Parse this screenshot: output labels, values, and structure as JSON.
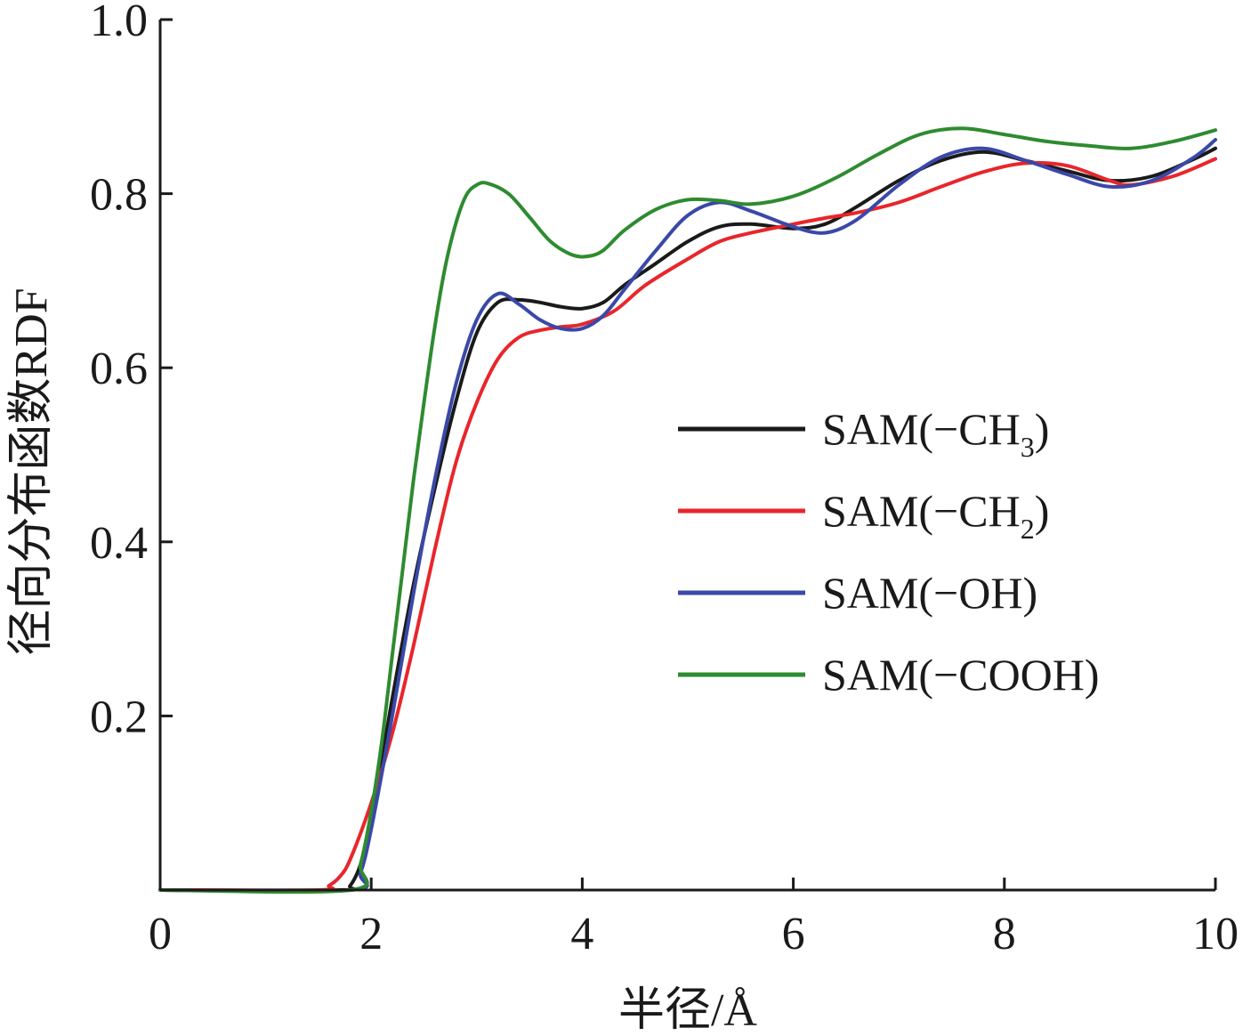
{
  "chart_data": {
    "type": "line",
    "xlabel": "半径/Å",
    "ylabel": "径向分布函数RDF",
    "xlim": [
      0,
      10
    ],
    "ylim": [
      0,
      1.0
    ],
    "x_ticks": [
      "0",
      "2",
      "4",
      "6",
      "8",
      "10"
    ],
    "y_ticks": [
      "0.2",
      "0.4",
      "0.6",
      "0.8",
      "1.0"
    ],
    "grid": false,
    "legend_position": "right",
    "series": [
      {
        "name": "SAM(−CH3)",
        "legend_main": "SAM(−CH",
        "legend_sub": "3",
        "legend_tail": ")",
        "color": "#1a1a1a",
        "x": [
          0,
          1.7,
          1.8,
          1.9,
          2.0,
          2.2,
          2.4,
          2.6,
          2.8,
          3.0,
          3.2,
          3.4,
          3.6,
          3.8,
          4.0,
          4.2,
          4.4,
          4.7,
          5.0,
          5.3,
          5.6,
          6.0,
          6.3,
          6.6,
          7.0,
          7.4,
          7.8,
          8.2,
          8.6,
          9.0,
          9.4,
          9.8,
          10.0
        ],
        "y": [
          0,
          0,
          0.005,
          0.03,
          0.08,
          0.22,
          0.35,
          0.46,
          0.56,
          0.64,
          0.675,
          0.678,
          0.675,
          0.67,
          0.668,
          0.675,
          0.695,
          0.72,
          0.745,
          0.762,
          0.765,
          0.76,
          0.765,
          0.785,
          0.815,
          0.838,
          0.848,
          0.838,
          0.826,
          0.815,
          0.82,
          0.84,
          0.852
        ]
      },
      {
        "name": "SAM(−CH2)",
        "legend_main": "SAM(−CH",
        "legend_sub": "2",
        "legend_tail": ")",
        "color": "#e8262b",
        "x": [
          0,
          1.5,
          1.6,
          1.7,
          1.8,
          2.0,
          2.2,
          2.4,
          2.6,
          2.8,
          3.0,
          3.2,
          3.4,
          3.6,
          3.8,
          4.0,
          4.3,
          4.6,
          5.0,
          5.3,
          5.6,
          6.0,
          6.3,
          6.6,
          7.0,
          7.4,
          7.8,
          8.2,
          8.6,
          9.0,
          9.2,
          9.6,
          10.0
        ],
        "y": [
          0,
          0,
          0.005,
          0.015,
          0.035,
          0.1,
          0.18,
          0.28,
          0.39,
          0.49,
          0.56,
          0.61,
          0.635,
          0.643,
          0.647,
          0.65,
          0.665,
          0.695,
          0.725,
          0.745,
          0.755,
          0.765,
          0.772,
          0.778,
          0.79,
          0.808,
          0.825,
          0.835,
          0.832,
          0.815,
          0.81,
          0.82,
          0.84
        ]
      },
      {
        "name": "SAM(−OH)",
        "legend_main": "SAM(−OH)",
        "legend_sub": "",
        "legend_tail": "",
        "color": "#3a48a8",
        "x": [
          0,
          1.8,
          1.9,
          2.0,
          2.2,
          2.4,
          2.6,
          2.8,
          3.0,
          3.2,
          3.4,
          3.6,
          3.8,
          4.0,
          4.2,
          4.4,
          4.7,
          5.0,
          5.3,
          5.6,
          6.0,
          6.3,
          6.6,
          7.0,
          7.4,
          7.8,
          8.2,
          8.6,
          9.0,
          9.4,
          9.8,
          10.0
        ],
        "y": [
          0,
          0,
          0.02,
          0.07,
          0.2,
          0.34,
          0.47,
          0.58,
          0.655,
          0.685,
          0.673,
          0.655,
          0.645,
          0.645,
          0.66,
          0.69,
          0.735,
          0.775,
          0.79,
          0.78,
          0.762,
          0.755,
          0.77,
          0.81,
          0.842,
          0.852,
          0.838,
          0.822,
          0.808,
          0.815,
          0.842,
          0.862
        ]
      },
      {
        "name": "SAM(−COOH)",
        "legend_main": "SAM(−COOH)",
        "legend_sub": "",
        "legend_tail": "",
        "color": "#2e8b30",
        "x": [
          0,
          1.8,
          1.9,
          2.0,
          2.1,
          2.2,
          2.3,
          2.4,
          2.5,
          2.6,
          2.7,
          2.8,
          2.9,
          3.0,
          3.1,
          3.3,
          3.5,
          3.7,
          3.9,
          4.05,
          4.2,
          4.4,
          4.7,
          5.0,
          5.3,
          5.6,
          6.0,
          6.4,
          6.8,
          7.2,
          7.6,
          8.0,
          8.4,
          8.8,
          9.2,
          9.6,
          10.0
        ],
        "y": [
          0,
          0,
          0.03,
          0.09,
          0.17,
          0.27,
          0.37,
          0.47,
          0.56,
          0.645,
          0.715,
          0.765,
          0.798,
          0.81,
          0.812,
          0.8,
          0.773,
          0.745,
          0.73,
          0.728,
          0.735,
          0.758,
          0.782,
          0.793,
          0.792,
          0.788,
          0.797,
          0.818,
          0.845,
          0.868,
          0.875,
          0.868,
          0.86,
          0.855,
          0.852,
          0.86,
          0.873
        ]
      }
    ]
  }
}
